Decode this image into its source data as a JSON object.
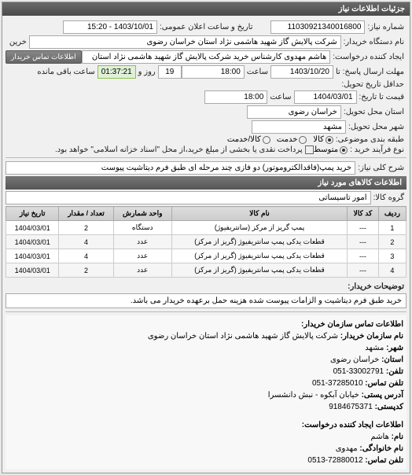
{
  "header": {
    "title": "جزئیات اطلاعات نیاز"
  },
  "need_number": {
    "label": "شماره نیاز:",
    "value": "11030921340016800"
  },
  "announce": {
    "label": "تاریخ و ساعت اعلان عمومی:",
    "value": "1403/10/01 - 15:20"
  },
  "buyer_org": {
    "label": "نام دستگاه خریدار:",
    "value": "شرکت پالایش گاز شهید هاشمی نژاد   استان خراسان رضوی"
  },
  "requester": {
    "label": "ایجاد کننده درخواست:",
    "value": "هاشم مهدوی کارشناس خرید شرکت پالایش گاز شهید هاشمی نژاد   استان",
    "contact_btn": "اطلاعات تماس خریدار"
  },
  "deadline_send": {
    "label": "مهلت ارسال پاسخ: تا",
    "date": "1403/10/20",
    "time_label": "ساعت",
    "time": "18:00",
    "days": "19",
    "days_label": "روز و",
    "countdown": "01:37:21",
    "remain_label": "ساعت باقی مانده"
  },
  "delivery": {
    "label": "حداقل تاریخ تحویل:",
    "price_date_label": "قیمت تا تاریخ:",
    "date": "1404/03/01",
    "time_label": "ساعت",
    "time": "18:00"
  },
  "location": {
    "province_label": "استان محل تحویل:",
    "province": "خراسان رضوی",
    "city_label": "شهر محل تحویل:",
    "city": "مشهد"
  },
  "category": {
    "label": "طبقه بندی موضوعی:",
    "options": [
      "کالا",
      "خدمت",
      "کالا/خدمت"
    ],
    "selected": 0
  },
  "process": {
    "label": "نوع فرآیند خرید :",
    "options": [
      "متوسط"
    ],
    "selected": 0,
    "note": "پرداخت نقدی یا بخشی از مبلغ خرید،از محل \"اسناد خزانه اسلامی\" خواهد بود."
  },
  "need_desc": {
    "label": "شرح کلی نیاز:",
    "value": "خرید پمپ(فاقدالکتروموتور) دو فازی چند مرحله ای طبق فرم دیتاشیت پیوست"
  },
  "goods_section": {
    "title": "اطلاعات کالاهای مورد نیاز",
    "group_label": "گروه کالا:",
    "group_value": "امور تاسیساتی"
  },
  "table": {
    "headers": [
      "ردیف",
      "کد کالا",
      "نام کالا",
      "واحد شمارش",
      "تعداد / مقدار",
      "تاریخ نیاز"
    ],
    "rows": [
      [
        "1",
        "---",
        "پمپ گریز از مرکز (سانتریفیوژ)",
        "دستگاه",
        "2",
        "1404/03/01"
      ],
      [
        "2",
        "---",
        "قطعات یدکی پمپ سانتریفیوژ (گریز از مرکز)",
        "عدد",
        "4",
        "1404/03/01"
      ],
      [
        "3",
        "---",
        "قطعات یدکی پمپ سانتریفیوژ (گریز از مرکز)",
        "عدد",
        "4",
        "1404/03/01"
      ],
      [
        "4",
        "---",
        "قطعات یدکی پمپ سانتریفیوژ (گریز از مرکز)",
        "عدد",
        "2",
        "1404/03/01"
      ]
    ]
  },
  "buyer_notes": {
    "label": "توضیحات خریدار:",
    "value": "خرید طبق فرم دیتاشیت و الزامات پیوست شده هزینه حمل برعهده خریدار می باشد."
  },
  "contact_buyer": {
    "title": "اطلاعات تماس سازمان خریدار:",
    "org_name_label": "نام سازمان خریدار:",
    "org_name": "شرکت پالایش گاز شهید هاشمی نژاد استان خراسان رضوی",
    "city_label": "شهر:",
    "city": "مشهد",
    "province_label": "استان:",
    "province": "خراسان رضوی",
    "phone_label": "تلفن:",
    "phone": "33002791-051",
    "fax_label": "تلفن تماس:",
    "fax": "37285010-051",
    "address_label": "آدرس پستی:",
    "address": "خیابان آبکوه - نبش دانشسرا",
    "postal_label": "کدپستی:",
    "postal": "9184675371"
  },
  "contact_creator": {
    "title": "اطلاعات ایجاد کننده درخواست:",
    "name_label": "نام:",
    "name": "هاشم",
    "family_label": "نام خانوادگی:",
    "family": "مهدوی",
    "phone_label": "تلفن تماس:",
    "phone": "72880012-0513"
  }
}
